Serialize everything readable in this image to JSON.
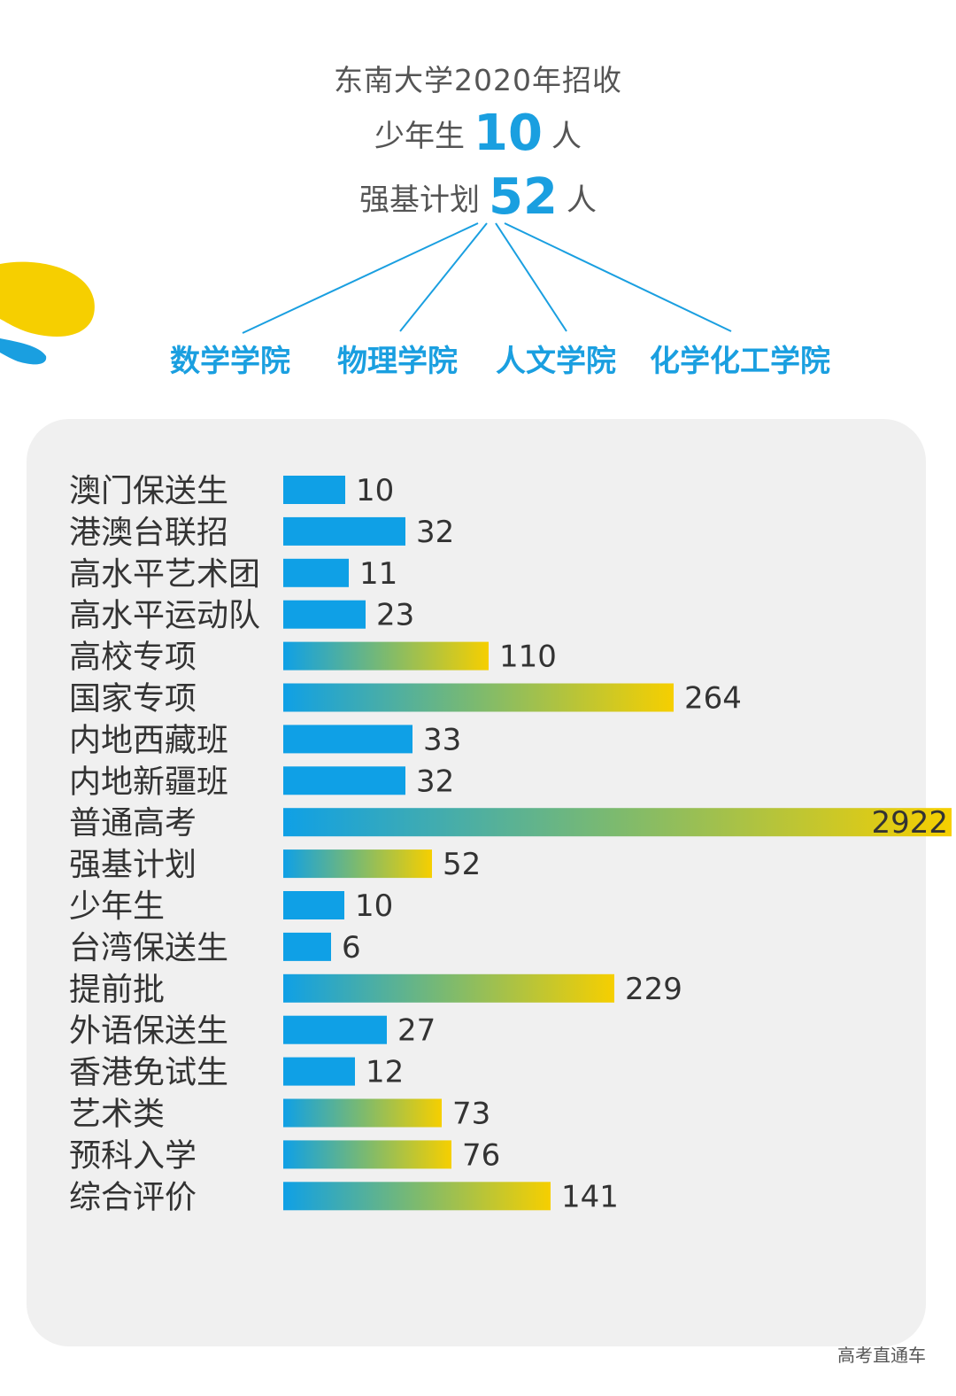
{
  "header": {
    "title": "东南大学2020年招收",
    "juvenile_label": "少年生",
    "juvenile_count": "10",
    "strong_base_label": "强基计划",
    "strong_base_count": "52",
    "unit": "人",
    "colleges": [
      "数学学院",
      "物理学院",
      "人文学院",
      "化学化工学院"
    ]
  },
  "colors": {
    "accent": "#1a9fe0",
    "bar_blue": "#0fa0e6",
    "gradient_start": "#0fa0e6",
    "gradient_mid": "#7dba6e",
    "gradient_end": "#f6cf00",
    "blob_yellow": "#f6cf00",
    "panel_bg": "#f0f0f0"
  },
  "chart_data": {
    "type": "bar",
    "orientation": "horizontal",
    "title": "",
    "xlabel": "",
    "ylabel": "",
    "note": "Bars are drawn on a broken scale; value labels give exact counts.",
    "categories": [
      "澳门保送生",
      "港澳台联招",
      "高水平艺术团",
      "高水平运动队",
      "高校专项",
      "国家专项",
      "内地西藏班",
      "内地新疆班",
      "普通高考",
      "强基计划",
      "少年生",
      "台湾保送生",
      "提前批",
      "外语保送生",
      "香港免试生",
      "艺术类",
      "预科入学",
      "综合评价"
    ],
    "values": [
      10,
      32,
      11,
      23,
      110,
      264,
      33,
      32,
      2922,
      52,
      10,
      6,
      229,
      27,
      12,
      73,
      76,
      141
    ],
    "styles": [
      "solid",
      "solid",
      "solid",
      "solid",
      "gradient",
      "gradient",
      "solid",
      "solid",
      "gradient",
      "gradient",
      "solid",
      "solid",
      "gradient",
      "solid",
      "solid",
      "gradient",
      "gradient",
      "gradient"
    ],
    "display_lengths": [
      70,
      138,
      74,
      93,
      232,
      441,
      146,
      138,
      755,
      168,
      69,
      54,
      374,
      117,
      81,
      179,
      190,
      302
    ]
  },
  "watermark": "高考直通车"
}
